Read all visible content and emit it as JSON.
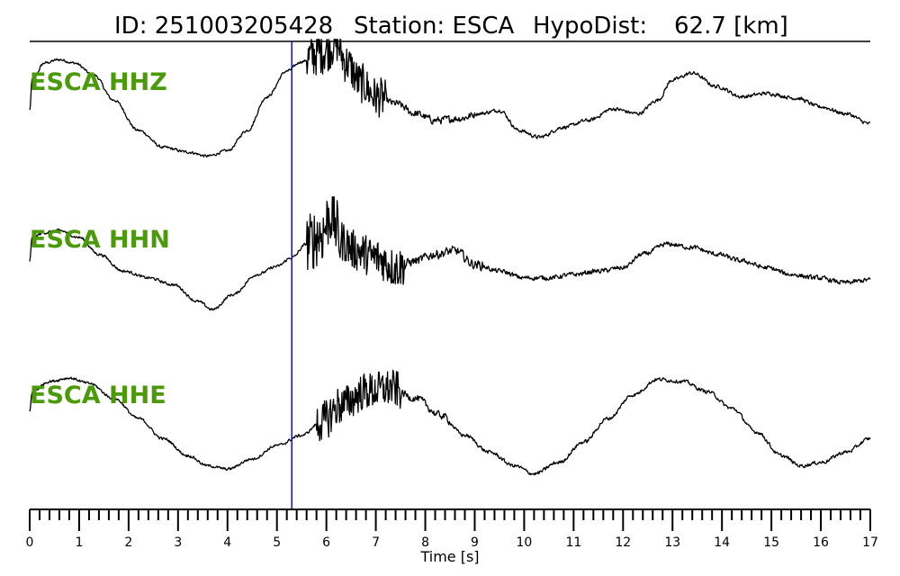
{
  "title": {
    "id_text": "ID: 251003205428",
    "station_text": "Station: ESCA",
    "hypodist_label": "HypoDist:",
    "hypodist_value": "62.7 [km]"
  },
  "colors": {
    "trace": "#000000",
    "channel_label": "#4a9a0a",
    "pick_line": "#1010c8"
  },
  "chart_data": {
    "type": "line",
    "xlabel": "Time [s]",
    "xlim": [
      0,
      17
    ],
    "major_ticks": [
      0,
      1,
      2,
      3,
      4,
      5,
      6,
      7,
      8,
      9,
      10,
      11,
      12,
      13,
      14,
      15,
      16,
      17
    ],
    "minor_tick_step": 0.2,
    "pick_time": 5.3,
    "grid": false,
    "series": [
      {
        "name": "ESCA HHZ",
        "points": [
          [
            0,
            0.1
          ],
          [
            0.05,
            0.55
          ],
          [
            0.3,
            0.8
          ],
          [
            0.6,
            0.85
          ],
          [
            0.9,
            0.8
          ],
          [
            1.3,
            0.62
          ],
          [
            1.7,
            0.25
          ],
          [
            2.2,
            -0.2
          ],
          [
            2.7,
            -0.45
          ],
          [
            3.2,
            -0.52
          ],
          [
            3.6,
            -0.58
          ],
          [
            4.0,
            -0.5
          ],
          [
            4.4,
            -0.2
          ],
          [
            4.8,
            0.3
          ],
          [
            5.2,
            0.68
          ],
          [
            5.5,
            0.82
          ],
          [
            5.9,
            0.98
          ],
          [
            6.2,
            1.1
          ],
          [
            6.4,
            0.8
          ],
          [
            6.7,
            0.5
          ],
          [
            7.0,
            0.3
          ],
          [
            7.4,
            0.2
          ],
          [
            7.8,
            0.05
          ],
          [
            8.2,
            -0.05
          ],
          [
            8.7,
            -0.02
          ],
          [
            9.1,
            0.05
          ],
          [
            9.5,
            0.1
          ],
          [
            9.9,
            -0.2
          ],
          [
            10.3,
            -0.3
          ],
          [
            10.8,
            -0.15
          ],
          [
            11.3,
            -0.05
          ],
          [
            11.8,
            0.12
          ],
          [
            12.3,
            0.05
          ],
          [
            12.7,
            0.25
          ],
          [
            13.0,
            0.55
          ],
          [
            13.4,
            0.65
          ],
          [
            13.9,
            0.45
          ],
          [
            14.4,
            0.3
          ],
          [
            14.9,
            0.35
          ],
          [
            15.5,
            0.28
          ],
          [
            16.0,
            0.15
          ],
          [
            16.5,
            0.05
          ],
          [
            17.0,
            -0.1
          ]
        ],
        "noise": [
          {
            "start": 0,
            "end": 5.6,
            "amp": 0.03
          },
          {
            "start": 5.6,
            "end": 6.2,
            "amp": 0.35
          },
          {
            "start": 6.2,
            "end": 7.2,
            "amp": 0.3
          },
          {
            "start": 7.2,
            "end": 9.0,
            "amp": 0.08
          },
          {
            "start": 9.0,
            "end": 17,
            "amp": 0.04
          }
        ]
      },
      {
        "name": "ESCA HHN",
        "points": [
          [
            0,
            0.2
          ],
          [
            0.05,
            0.55
          ],
          [
            0.3,
            0.62
          ],
          [
            0.6,
            0.65
          ],
          [
            1.0,
            0.55
          ],
          [
            1.4,
            0.3
          ],
          [
            1.9,
            0.05
          ],
          [
            2.4,
            -0.05
          ],
          [
            2.9,
            -0.15
          ],
          [
            3.4,
            -0.4
          ],
          [
            3.7,
            -0.52
          ],
          [
            4.1,
            -0.3
          ],
          [
            4.6,
            0.0
          ],
          [
            5.0,
            0.12
          ],
          [
            5.3,
            0.25
          ],
          [
            5.6,
            0.45
          ],
          [
            5.9,
            0.6
          ],
          [
            6.1,
            0.9
          ],
          [
            6.3,
            0.5
          ],
          [
            6.6,
            0.35
          ],
          [
            7.0,
            0.25
          ],
          [
            7.4,
            0.1
          ],
          [
            7.8,
            0.2
          ],
          [
            8.2,
            0.3
          ],
          [
            8.6,
            0.35
          ],
          [
            9.0,
            0.15
          ],
          [
            9.5,
            0.05
          ],
          [
            10.0,
            -0.05
          ],
          [
            10.5,
            -0.05
          ],
          [
            11.0,
            0.0
          ],
          [
            11.5,
            0.05
          ],
          [
            12.0,
            0.1
          ],
          [
            12.4,
            0.3
          ],
          [
            12.9,
            0.45
          ],
          [
            13.4,
            0.4
          ],
          [
            13.9,
            0.3
          ],
          [
            14.4,
            0.2
          ],
          [
            14.9,
            0.1
          ],
          [
            15.4,
            0.0
          ],
          [
            15.9,
            -0.05
          ],
          [
            16.5,
            -0.12
          ],
          [
            17.0,
            -0.08
          ]
        ],
        "noise": [
          {
            "start": 0,
            "end": 5.6,
            "amp": 0.03
          },
          {
            "start": 5.6,
            "end": 6.3,
            "amp": 0.45
          },
          {
            "start": 6.3,
            "end": 7.6,
            "amp": 0.3
          },
          {
            "start": 7.6,
            "end": 9.2,
            "amp": 0.1
          },
          {
            "start": 9.2,
            "end": 17,
            "amp": 0.05
          }
        ]
      },
      {
        "name": "ESCA HHE",
        "points": [
          [
            0,
            0.3
          ],
          [
            0.05,
            0.6
          ],
          [
            0.4,
            0.75
          ],
          [
            0.8,
            0.8
          ],
          [
            1.2,
            0.72
          ],
          [
            1.7,
            0.5
          ],
          [
            2.2,
            0.2
          ],
          [
            2.7,
            -0.1
          ],
          [
            3.2,
            -0.35
          ],
          [
            3.6,
            -0.5
          ],
          [
            4.0,
            -0.55
          ],
          [
            4.5,
            -0.4
          ],
          [
            5.0,
            -0.2
          ],
          [
            5.5,
            -0.05
          ],
          [
            5.9,
            0.15
          ],
          [
            6.3,
            0.4
          ],
          [
            6.8,
            0.6
          ],
          [
            7.3,
            0.65
          ],
          [
            7.8,
            0.5
          ],
          [
            8.3,
            0.25
          ],
          [
            8.8,
            -0.05
          ],
          [
            9.3,
            -0.3
          ],
          [
            9.8,
            -0.5
          ],
          [
            10.2,
            -0.62
          ],
          [
            10.7,
            -0.45
          ],
          [
            11.2,
            -0.15
          ],
          [
            11.7,
            0.2
          ],
          [
            12.2,
            0.55
          ],
          [
            12.7,
            0.78
          ],
          [
            13.2,
            0.75
          ],
          [
            13.7,
            0.6
          ],
          [
            14.2,
            0.35
          ],
          [
            14.7,
            0.0
          ],
          [
            15.2,
            -0.35
          ],
          [
            15.6,
            -0.5
          ],
          [
            16.0,
            -0.45
          ],
          [
            16.5,
            -0.3
          ],
          [
            17.0,
            -0.1
          ]
        ],
        "noise": [
          {
            "start": 0,
            "end": 5.8,
            "amp": 0.03
          },
          {
            "start": 5.8,
            "end": 6.3,
            "amp": 0.3
          },
          {
            "start": 6.3,
            "end": 7.5,
            "amp": 0.28
          },
          {
            "start": 7.5,
            "end": 8.5,
            "amp": 0.08
          },
          {
            "start": 8.5,
            "end": 17,
            "amp": 0.04
          }
        ]
      }
    ]
  }
}
